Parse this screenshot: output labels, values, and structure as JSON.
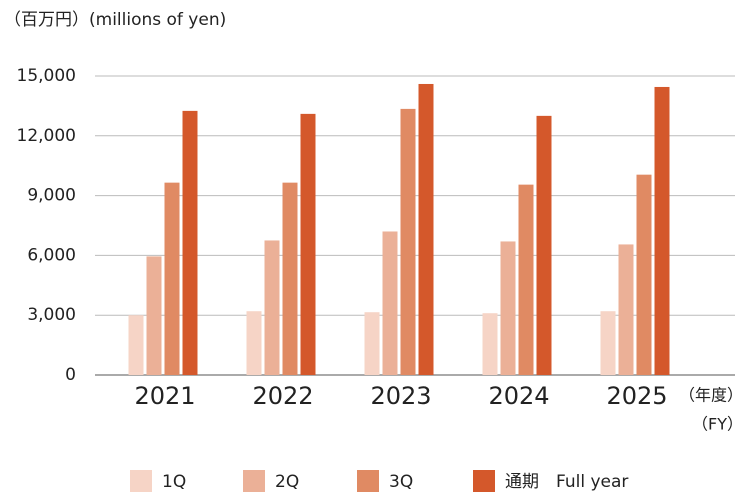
{
  "chart_data": {
    "type": "bar",
    "y_axis_label": "（百万円）(millions of yen)",
    "x_axis_label": "（年度）",
    "x_axis_label_en": "（FY）",
    "categories": [
      "2021",
      "2022",
      "2023",
      "2024",
      "2025"
    ],
    "series": [
      {
        "name": "1Q",
        "color": "#f6d4c6",
        "values": [
          3000,
          3200,
          3150,
          3100,
          3200
        ]
      },
      {
        "name": "2Q",
        "color": "#ebb097",
        "values": [
          5950,
          6750,
          7200,
          6700,
          6550
        ]
      },
      {
        "name": "3Q",
        "color": "#e08a63",
        "values": [
          9650,
          9650,
          13350,
          9550,
          10050
        ]
      },
      {
        "name": "通期　Full year",
        "color": "#d4582b",
        "values": [
          13250,
          13100,
          14600,
          13000,
          14450
        ]
      }
    ],
    "ylim": [
      0,
      15000
    ],
    "yticks": [
      0,
      {
        "value": 3000,
        "label": "3,000"
      },
      {
        "value": 6000,
        "label": "6,000"
      },
      {
        "value": 9000,
        "label": "9,000"
      },
      {
        "value": 12000,
        "label": "12,000"
      },
      {
        "value": 15000,
        "label": "15,000"
      }
    ],
    "grid": true
  }
}
